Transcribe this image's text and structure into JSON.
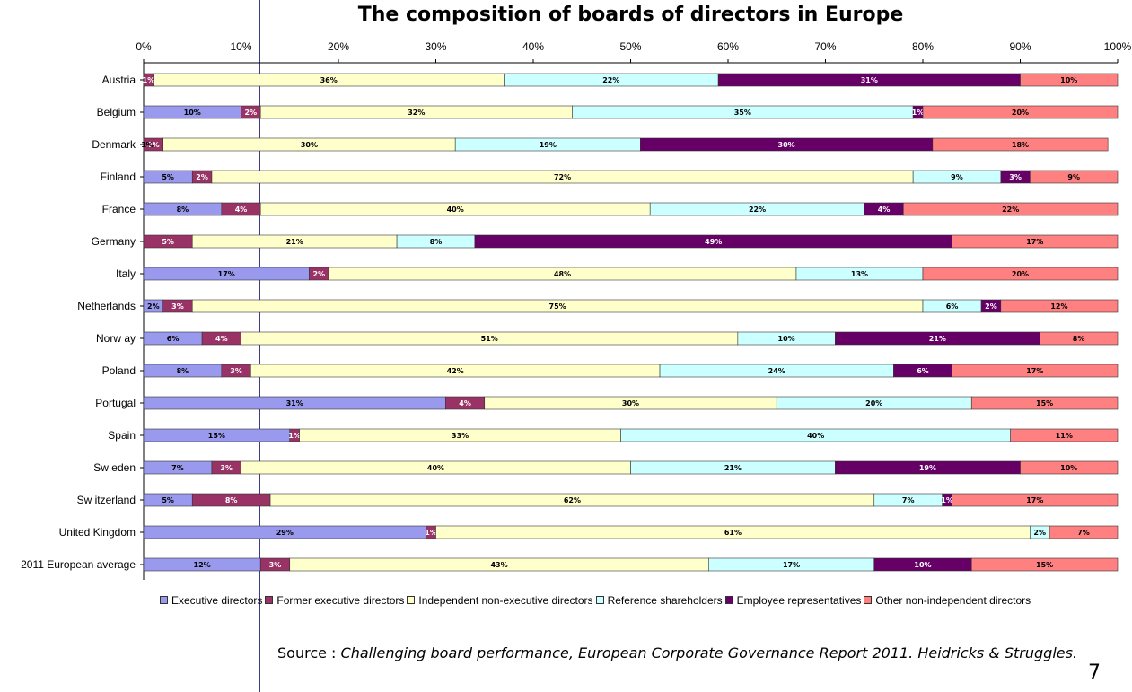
{
  "chart_data": {
    "type": "bar",
    "orientation": "horizontal",
    "stacked": "percent",
    "title": "The composition of boards of directors in Europe",
    "xlabel": "",
    "ylabel": "",
    "xlim": [
      0,
      100
    ],
    "x_ticks": [
      "0%",
      "10%",
      "20%",
      "30%",
      "40%",
      "50%",
      "60%",
      "70%",
      "80%",
      "90%",
      "100%"
    ],
    "legend_position": "bottom",
    "grid": false,
    "categories": [
      "Austria",
      "Belgium",
      "Denmark",
      "Finland",
      "France",
      "Germany",
      "Italy",
      "Netherlands",
      "Norw ay",
      "Poland",
      "Portugal",
      "Spain",
      "Sw eden",
      "Sw itzerland",
      "United Kingdom",
      "2011 European average"
    ],
    "series": [
      {
        "name": "Executive directors",
        "color": "#9999ee",
        "values": [
          0,
          10,
          0,
          5,
          8,
          0,
          17,
          2,
          6,
          8,
          31,
          15,
          7,
          5,
          29,
          12
        ],
        "labels": [
          "",
          "10%",
          "",
          "5%",
          "8%",
          "",
          "17%",
          "2%",
          "6%",
          "8%",
          "31%",
          "15%",
          "7%",
          "5%",
          "29%",
          "12%"
        ]
      },
      {
        "name": "Former executive directors",
        "color": "#993366",
        "values": [
          1,
          2,
          2,
          2,
          4,
          5,
          2,
          3,
          4,
          3,
          4,
          1,
          3,
          8,
          1,
          3
        ],
        "labels": [
          "1%",
          "2%",
          "2%",
          "2%",
          "4%",
          "5%",
          "2%",
          "3%",
          "4%",
          "3%",
          "4%",
          "1%",
          "3%",
          "8%",
          "1%",
          "3%"
        ]
      },
      {
        "name": "Independent non-executive directors",
        "color": "#ffffcc",
        "values": [
          36,
          32,
          30,
          72,
          40,
          21,
          48,
          75,
          51,
          42,
          30,
          33,
          40,
          62,
          61,
          43
        ],
        "labels": [
          "36%",
          "32%",
          "30%",
          "72%",
          "40%",
          "21%",
          "48%",
          "75%",
          "51%",
          "42%",
          "30%",
          "33%",
          "40%",
          "62%",
          "61%",
          "43%"
        ]
      },
      {
        "name": "Reference shareholders",
        "color": "#ccffff",
        "values": [
          22,
          35,
          19,
          9,
          22,
          8,
          13,
          6,
          10,
          24,
          20,
          40,
          21,
          7,
          2,
          17
        ],
        "labels": [
          "22%",
          "35%",
          "19%",
          "9%",
          "22%",
          "8%",
          "13%",
          "6%",
          "10%",
          "24%",
          "20%",
          "40%",
          "21%",
          "7%",
          "2%",
          "17%"
        ]
      },
      {
        "name": "Employee representatives",
        "color": "#660066",
        "values": [
          31,
          1,
          30,
          3,
          4,
          49,
          0,
          2,
          21,
          6,
          0,
          0,
          19,
          1,
          0,
          10
        ],
        "labels": [
          "31%",
          "1%",
          "30%",
          "3%",
          "4%",
          "49%",
          "",
          "2%",
          "21%",
          "6%",
          "",
          "",
          "19%",
          "1%",
          "",
          "10%"
        ]
      },
      {
        "name": "Other non-independent directors",
        "color": "#ff8080",
        "values": [
          10,
          20,
          18,
          9,
          22,
          17,
          20,
          12,
          8,
          17,
          15,
          11,
          10,
          17,
          7,
          15
        ],
        "labels": [
          "10%",
          "20%",
          "18%",
          "9%",
          "22%",
          "17%",
          "20%",
          "12%",
          "8%",
          "17%",
          "15%",
          "11%",
          "10%",
          "17%",
          "7%",
          "15%"
        ]
      }
    ],
    "extra_labels": [
      {
        "category": "Denmark",
        "text": "1%"
      }
    ]
  },
  "source": {
    "prefix": "Source : ",
    "text": "Challenging board performance, European Corporate Governance Report 2011. Heidricks & Struggles."
  },
  "page_number": "7"
}
